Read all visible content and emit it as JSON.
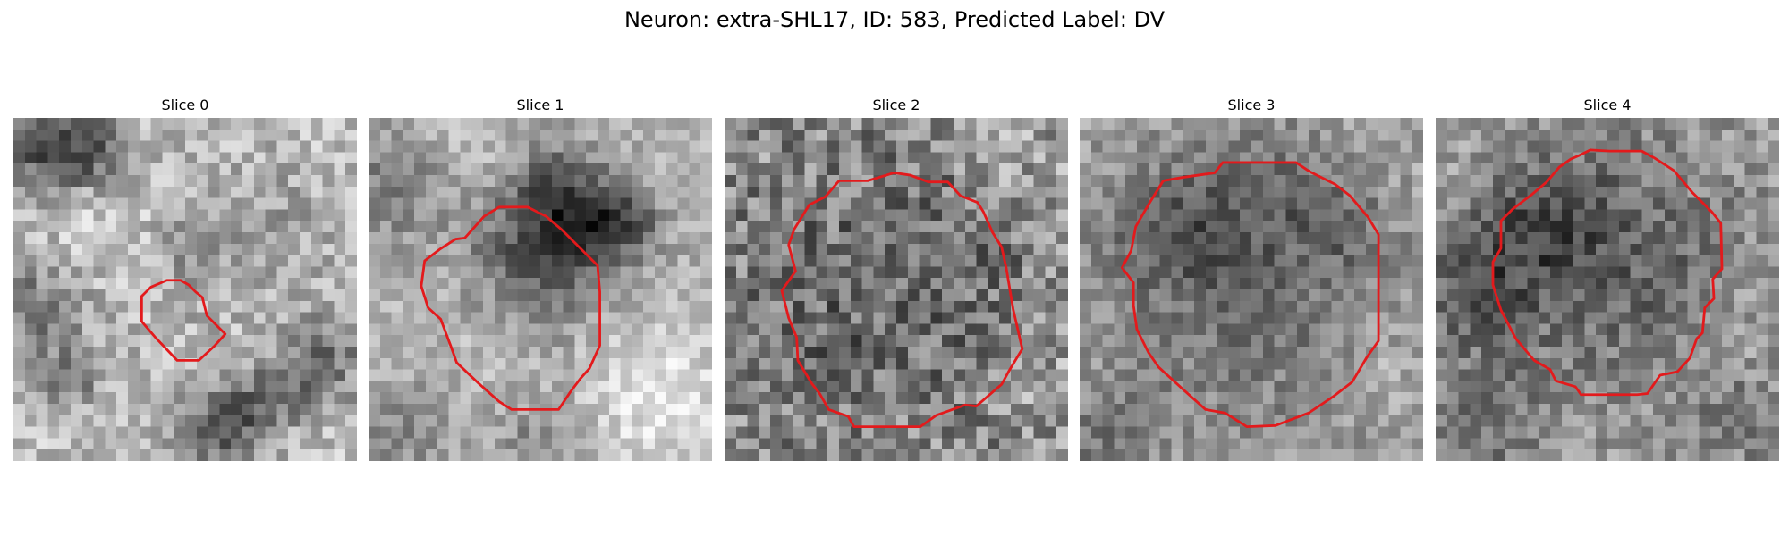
{
  "figure": {
    "title": "Neuron: extra-SHL17, ID: 583, Predicted Label: DV",
    "contour_color": "#e31a1c",
    "colormap": "grayscale"
  },
  "panels": [
    {
      "label": "Slice 0",
      "index": 0
    },
    {
      "label": "Slice 1",
      "index": 1
    },
    {
      "label": "Slice 2",
      "index": 2
    },
    {
      "label": "Slice 3",
      "index": 3
    },
    {
      "label": "Slice 4",
      "index": 4
    }
  ]
}
